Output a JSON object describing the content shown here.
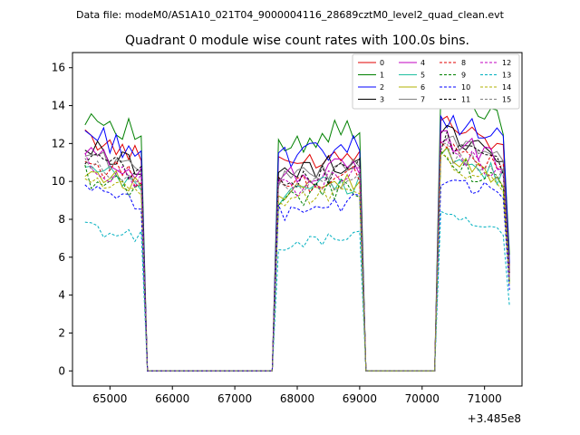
{
  "chart_data": {
    "type": "line",
    "suptitle": "Data file: modeM0/AS1A10_021T04_9000004116_28689cztM0_level2_quad_clean.evt",
    "title": "Quadrant 0 module wise count rates with 100.0s bins.",
    "xlabel": "",
    "ylabel": "",
    "offset_label": "+3.485e8",
    "xlim": [
      64400,
      71600
    ],
    "ylim": [
      -0.8,
      16.8
    ],
    "x_ticks": [
      65000,
      66000,
      67000,
      68000,
      69000,
      70000,
      71000
    ],
    "x_tick_labels": [
      "65000",
      "66000",
      "67000",
      "68000",
      "69000",
      "70000",
      "71000"
    ],
    "y_ticks": [
      0,
      2,
      4,
      6,
      8,
      10,
      12,
      14,
      16
    ],
    "y_tick_labels": [
      "0",
      "2",
      "4",
      "6",
      "8",
      "10",
      "12",
      "14",
      "16"
    ],
    "segments": [
      {
        "start": 64600,
        "end": 65500
      },
      {
        "start": 67700,
        "end": 69000
      },
      {
        "start": 70300,
        "end": 71300
      }
    ],
    "legend": {
      "position": "upper right",
      "columns": 4
    },
    "series": [
      {
        "name": "0",
        "color": "#e00000",
        "dashed": false,
        "level": 12.3,
        "var": 0.5
      },
      {
        "name": "1",
        "color": "#008000",
        "dashed": false,
        "level": 13.6,
        "var": 0.7
      },
      {
        "name": "2",
        "color": "#0000ff",
        "dashed": false,
        "level": 12.6,
        "var": 0.7
      },
      {
        "name": "3",
        "color": "#000000",
        "dashed": false,
        "level": 11.8,
        "var": 0.6
      },
      {
        "name": "4",
        "color": "#c000c0",
        "dashed": false,
        "level": 11.5,
        "var": 0.6
      },
      {
        "name": "5",
        "color": "#20c0a0",
        "dashed": false,
        "level": 10.6,
        "var": 0.6
      },
      {
        "name": "6",
        "color": "#b0b000",
        "dashed": false,
        "level": 10.6,
        "var": 0.5
      },
      {
        "name": "7",
        "color": "#808080",
        "dashed": false,
        "level": 11.5,
        "var": 0.5
      },
      {
        "name": "8",
        "color": "#e00000",
        "dashed": true,
        "level": 11.0,
        "var": 0.6
      },
      {
        "name": "9",
        "color": "#008000",
        "dashed": true,
        "level": 10.3,
        "var": 0.6
      },
      {
        "name": "10",
        "color": "#0000ff",
        "dashed": true,
        "level": 9.5,
        "var": 0.5
      },
      {
        "name": "11",
        "color": "#000000",
        "dashed": true,
        "level": 11.3,
        "var": 0.6
      },
      {
        "name": "12",
        "color": "#c000c0",
        "dashed": true,
        "level": 10.9,
        "var": 0.6
      },
      {
        "name": "13",
        "color": "#00b0c0",
        "dashed": true,
        "level": 7.6,
        "var": 0.4
      },
      {
        "name": "14",
        "color": "#b0b000",
        "dashed": true,
        "level": 10.2,
        "var": 0.5
      },
      {
        "name": "15",
        "color": "#808080",
        "dashed": true,
        "level": 10.8,
        "var": 0.5
      }
    ]
  }
}
